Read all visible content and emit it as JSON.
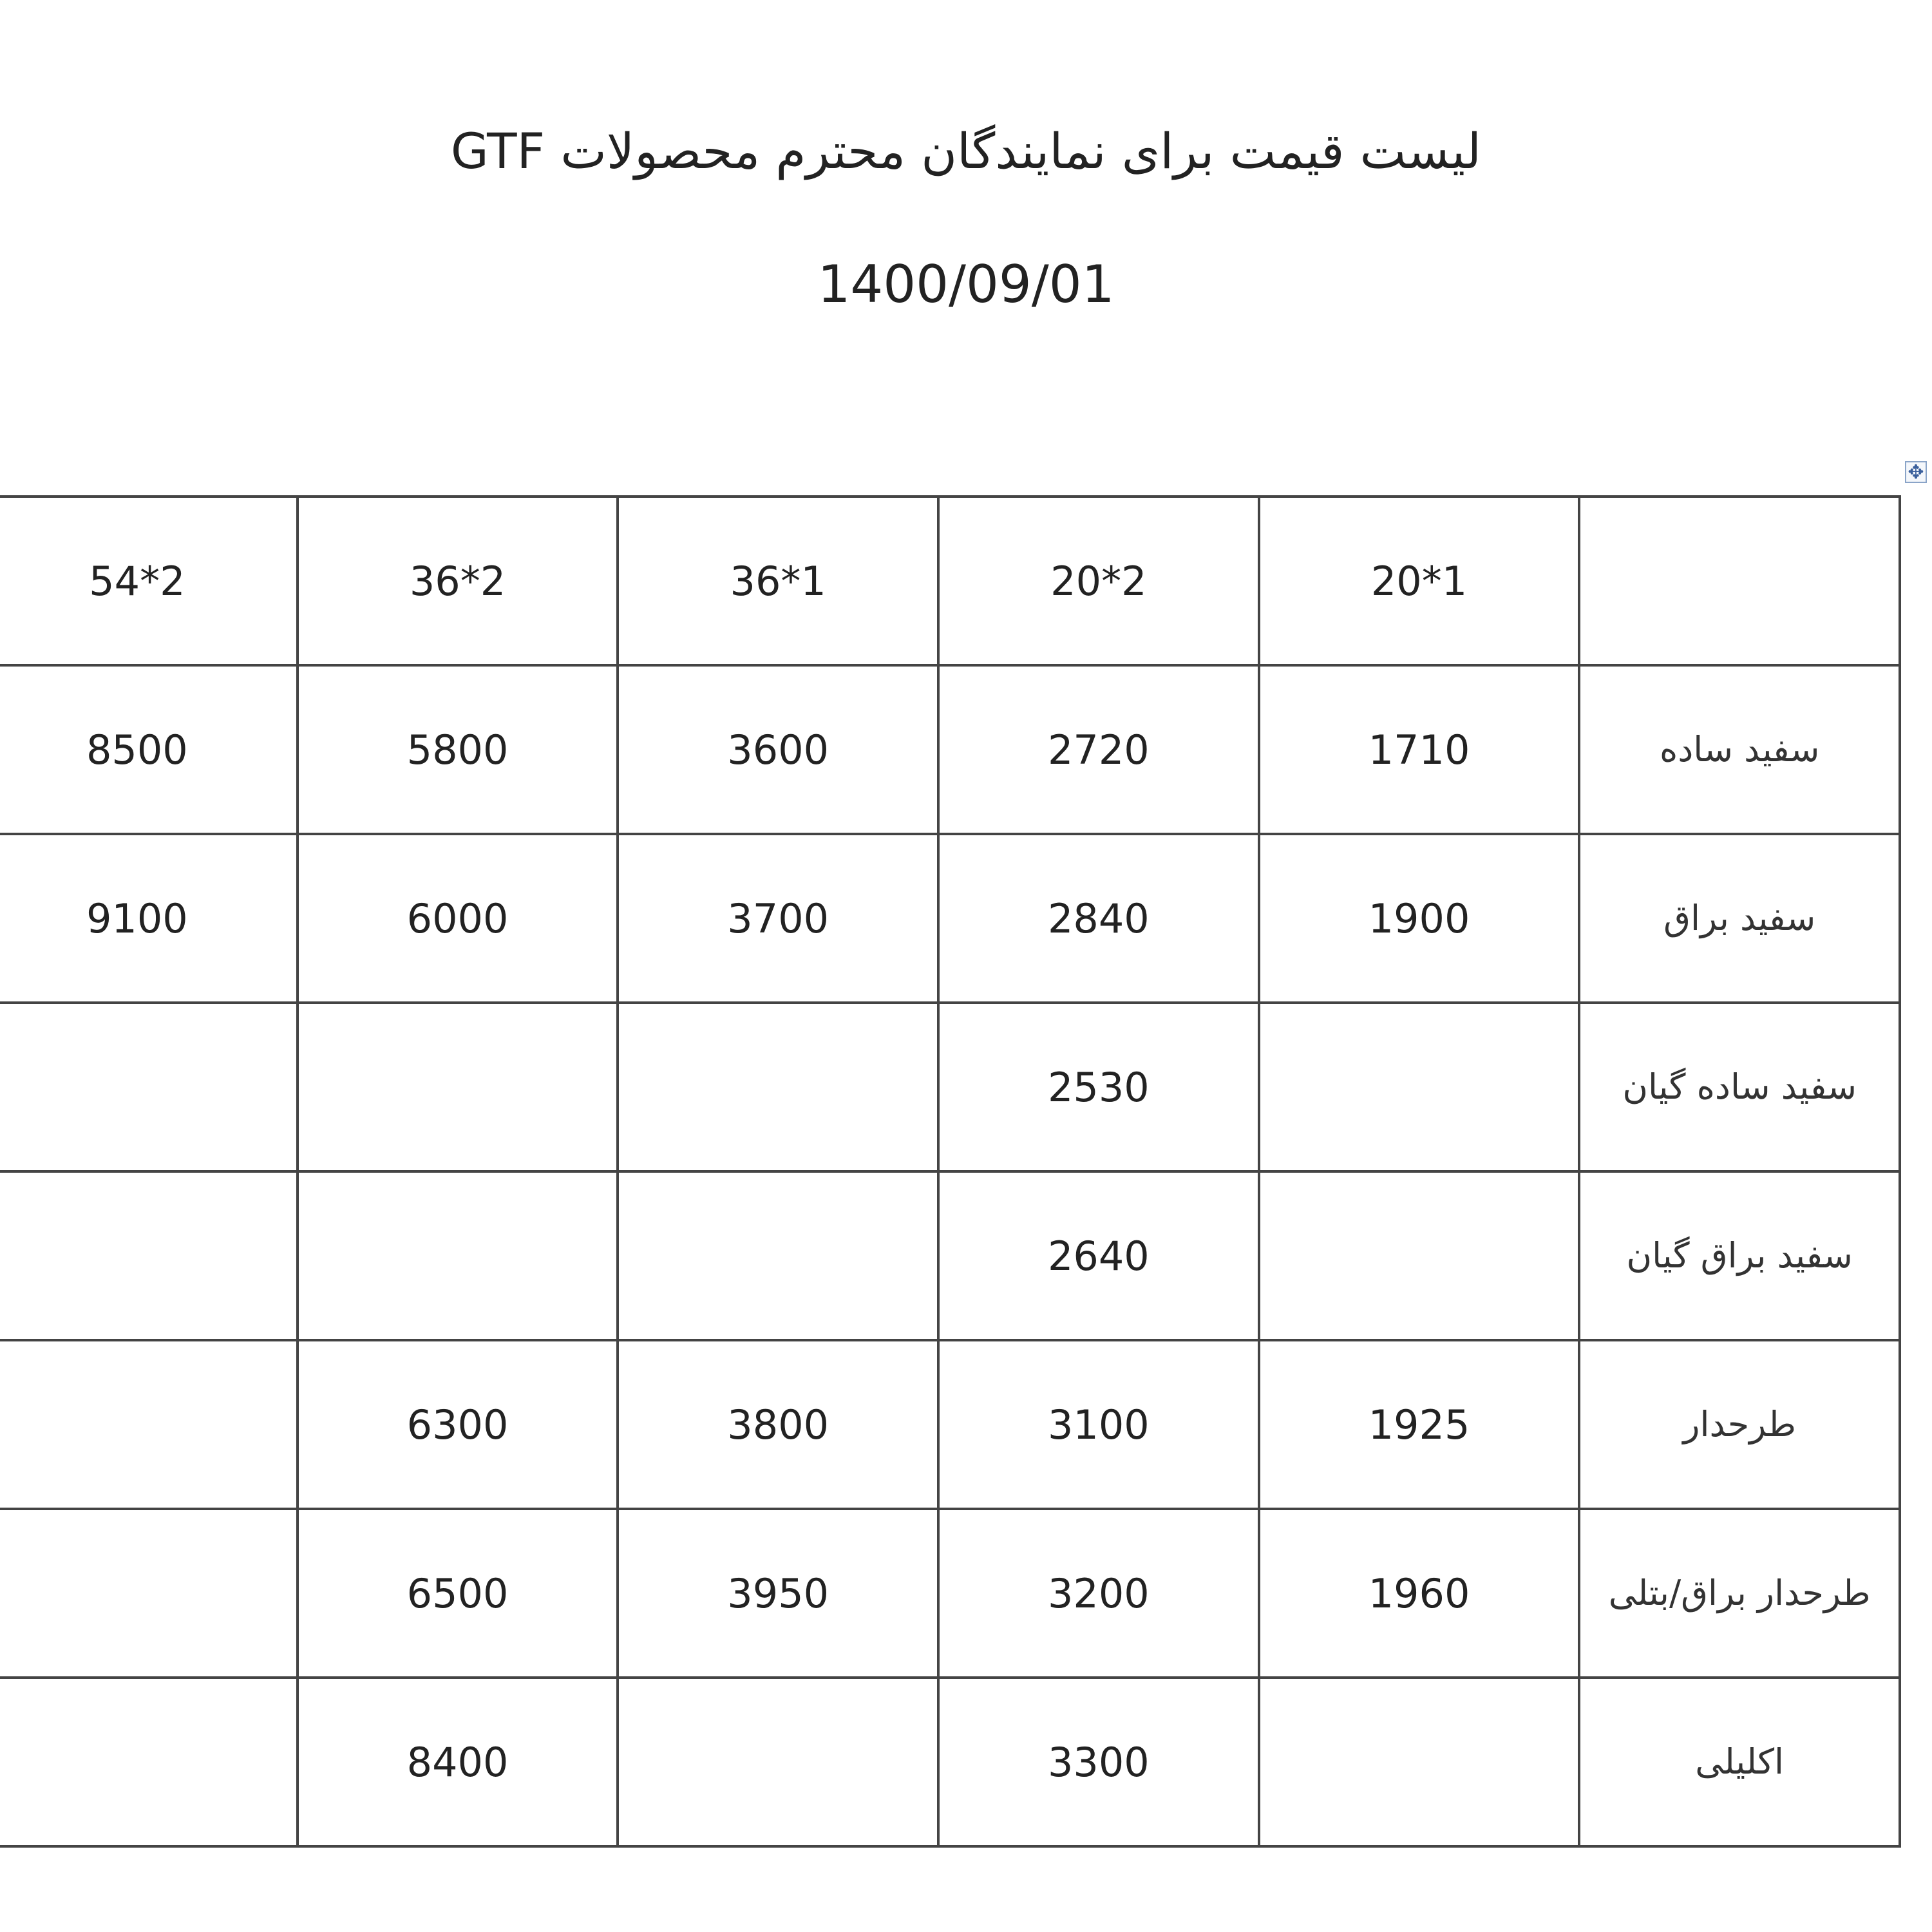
{
  "title": "لیست قیمت برای نمایندگان محترم محصولات GTF",
  "date": "1400/09/01",
  "table": {
    "headers": [
      "",
      "1*20",
      "2*20",
      "1*36",
      "2*36",
      "2*54"
    ],
    "rows": [
      {
        "label": "سفید ساده",
        "cells": [
          "1710",
          "2720",
          "3600",
          "5800",
          "8500"
        ]
      },
      {
        "label": "سفید براق",
        "cells": [
          "1900",
          "2840",
          "3700",
          "6000",
          "9100"
        ]
      },
      {
        "label": "سفید ساده گیان",
        "cells": [
          "",
          "2530",
          "",
          "",
          ""
        ]
      },
      {
        "label": "سفید براق گیان",
        "cells": [
          "",
          "2640",
          "",
          "",
          ""
        ]
      },
      {
        "label": "طرحدار",
        "cells": [
          "1925",
          "3100",
          "3800",
          "6300",
          ""
        ]
      },
      {
        "label": "طرحدار براق/بتلی",
        "cells": [
          "1960",
          "3200",
          "3950",
          "6500",
          ""
        ]
      },
      {
        "label": "اکلیلی",
        "cells": [
          "",
          "3300",
          "",
          "8400",
          ""
        ]
      }
    ]
  },
  "icons": {
    "table_handle": "move-icon"
  }
}
